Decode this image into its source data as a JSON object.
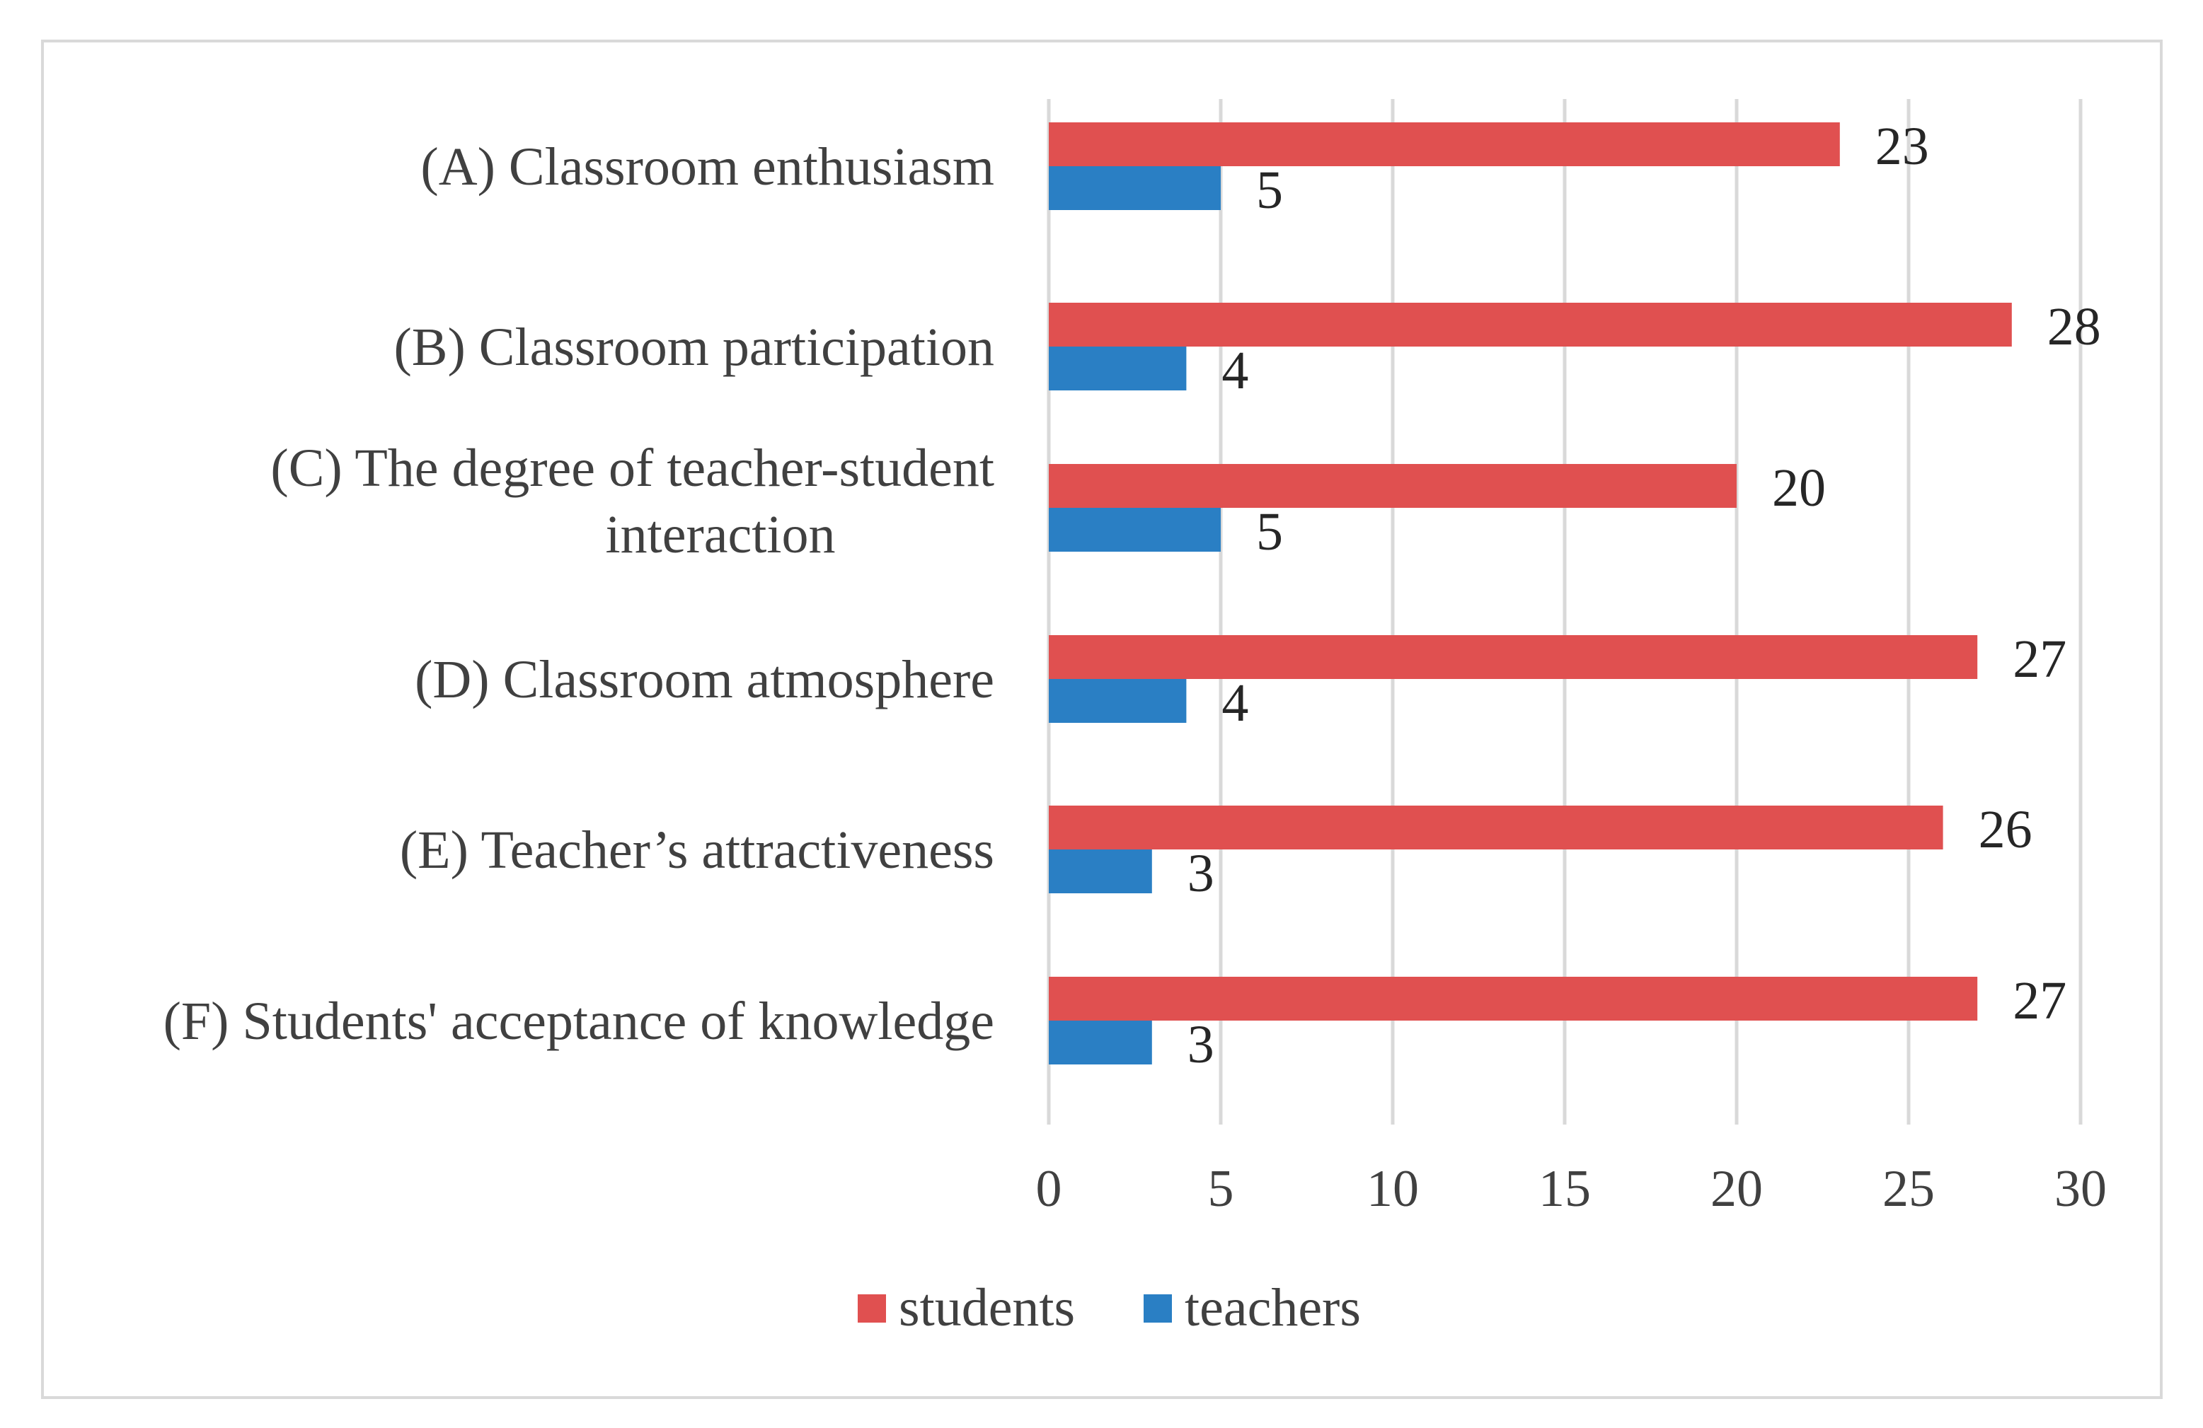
{
  "chart_data": {
    "type": "bar",
    "orientation": "horizontal",
    "categories": [
      "(A) Classroom enthusiasm",
      "(B) Classroom participation",
      "(C) The degree of teacher-student interaction",
      "(D) Classroom atmosphere",
      "(E) Teacher’s attractiveness",
      "(F) Students' acceptance of knowledge"
    ],
    "category_lines": [
      [
        "(A) Classroom enthusiasm"
      ],
      [
        "(B) Classroom participation"
      ],
      [
        "(C) The degree of teacher-student",
        "interaction"
      ],
      [
        "(D) Classroom atmosphere"
      ],
      [
        "(E) Teacher’s attractiveness"
      ],
      [
        "(F) Students' acceptance of knowledge"
      ]
    ],
    "series": [
      {
        "name": "students",
        "color": "#e05050",
        "values": [
          23,
          28,
          20,
          27,
          26,
          27
        ]
      },
      {
        "name": "teachers",
        "color": "#2a7fc4",
        "values": [
          5,
          4,
          5,
          4,
          3,
          3
        ]
      }
    ],
    "xlim": [
      0,
      30
    ],
    "xticks": [
      "0",
      "5",
      "10",
      "15",
      "20",
      "25",
      "30"
    ],
    "grid": true,
    "data_labels": true,
    "legend_position": "bottom",
    "title": "",
    "xlabel": "",
    "ylabel": ""
  }
}
